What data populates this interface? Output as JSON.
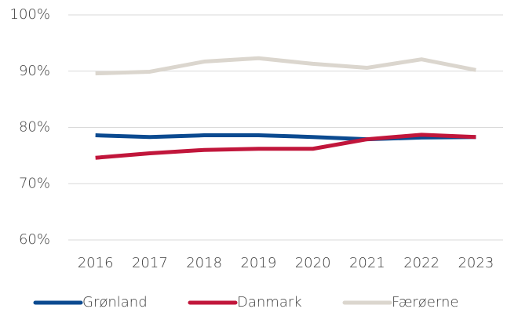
{
  "chart_data": {
    "type": "line",
    "categories": [
      "2016",
      "2017",
      "2018",
      "2019",
      "2020",
      "2021",
      "2022",
      "2023"
    ],
    "series": [
      {
        "name": "Grønland",
        "color": "#0b4a90",
        "values": [
          78.6,
          78.3,
          78.6,
          78.6,
          78.3,
          77.9,
          78.2,
          78.3
        ]
      },
      {
        "name": "Danmark",
        "color": "#c1163b",
        "values": [
          74.6,
          75.4,
          76.0,
          76.2,
          76.2,
          77.9,
          78.7,
          78.3
        ]
      },
      {
        "name": "Færøerne",
        "color": "#dbd6ce",
        "values": [
          89.6,
          89.9,
          91.7,
          92.3,
          91.3,
          90.6,
          92.1,
          90.2
        ]
      }
    ],
    "ylim": [
      60,
      100
    ],
    "yticks": [
      {
        "value": 60,
        "label": "60%"
      },
      {
        "value": 70,
        "label": "70%"
      },
      {
        "value": 80,
        "label": "80%"
      },
      {
        "value": 90,
        "label": "90%"
      },
      {
        "value": 100,
        "label": "100%"
      }
    ],
    "grid": true,
    "legend": "bottom"
  }
}
